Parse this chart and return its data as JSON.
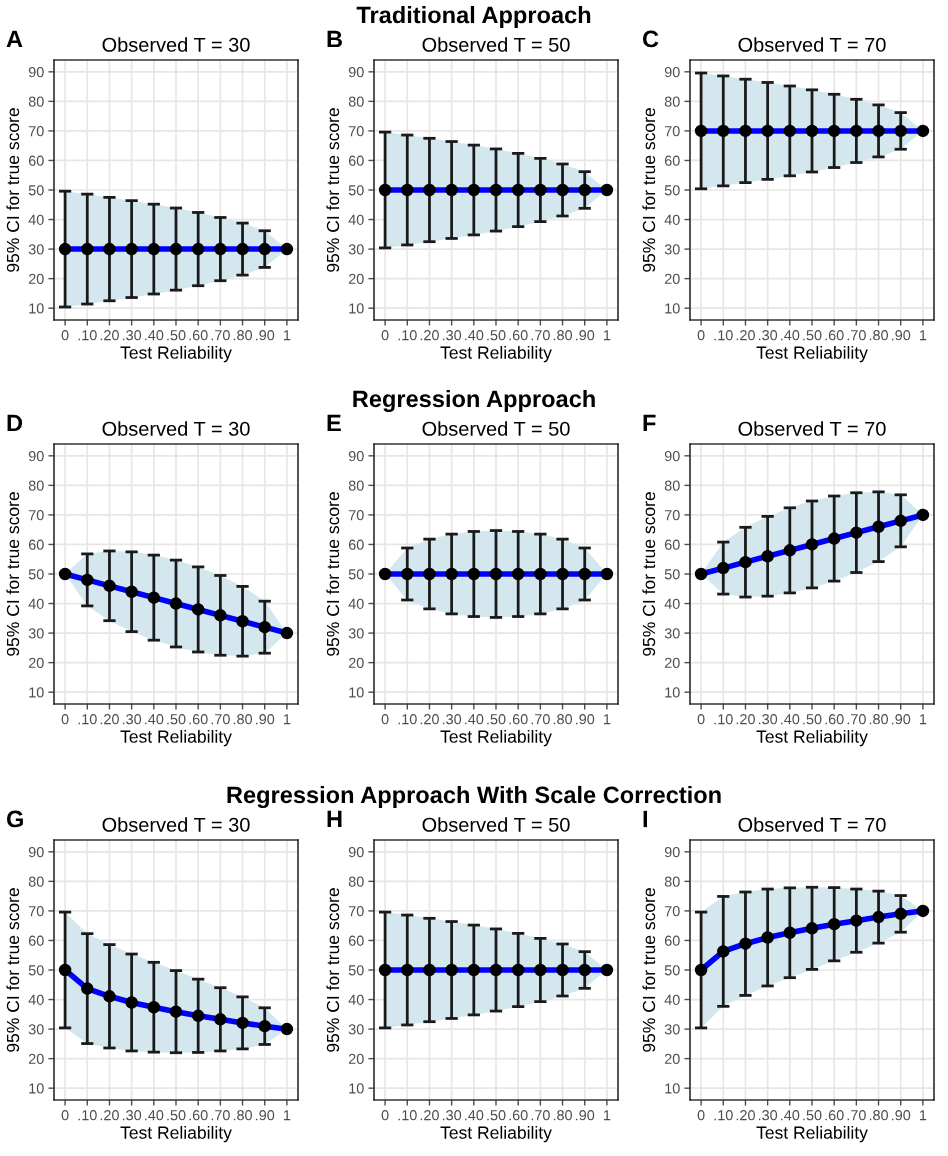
{
  "chart_data": [
    {
      "type": "line",
      "title": "Observed T = 30",
      "xlabel": "Test Reliability",
      "ylabel": "95% CI for true score",
      "annotations": [
        "A"
      ],
      "categories": [
        "0",
        ".10",
        ".20",
        ".30",
        ".40",
        ".50",
        ".60",
        ".70",
        ".80",
        ".90",
        "1"
      ],
      "ylim": [
        6,
        94
      ],
      "yticks": [
        10,
        20,
        30,
        40,
        50,
        60,
        70,
        80,
        90
      ],
      "grid": true,
      "marker": "circle",
      "series": [
        {
          "color": "#0000ff",
          "values": [
            30,
            30,
            30,
            30,
            30,
            30,
            30,
            30,
            30,
            30,
            30
          ],
          "errors": [
            19.6,
            18.6,
            17.5,
            16.4,
            15.2,
            13.9,
            12.4,
            10.7,
            8.8,
            6.2,
            0
          ],
          "lower": [
            10.4,
            11.4,
            12.5,
            13.6,
            14.8,
            16.1,
            17.6,
            19.3,
            21.2,
            23.8,
            30
          ],
          "upper": [
            49.6,
            48.6,
            47.5,
            46.4,
            45.2,
            43.9,
            42.4,
            40.7,
            38.8,
            36.2,
            30
          ]
        }
      ]
    },
    {
      "type": "line",
      "title": "Observed T = 50",
      "xlabel": "Test Reliability",
      "ylabel": "95% CI for true score",
      "annotations": [
        "B",
        "Traditional Approach"
      ],
      "categories": [
        "0",
        ".10",
        ".20",
        ".30",
        ".40",
        ".50",
        ".60",
        ".70",
        ".80",
        ".90",
        "1"
      ],
      "ylim": [
        6,
        94
      ],
      "yticks": [
        10,
        20,
        30,
        40,
        50,
        60,
        70,
        80,
        90
      ],
      "grid": true,
      "marker": "circle",
      "series": [
        {
          "color": "#0000ff",
          "values": [
            50,
            50,
            50,
            50,
            50,
            50,
            50,
            50,
            50,
            50,
            50
          ],
          "errors": [
            19.6,
            18.6,
            17.5,
            16.4,
            15.2,
            13.9,
            12.4,
            10.7,
            8.8,
            6.2,
            0
          ],
          "lower": [
            30.4,
            31.4,
            32.5,
            33.6,
            34.8,
            36.1,
            37.6,
            39.3,
            41.2,
            43.8,
            50
          ],
          "upper": [
            69.6,
            68.6,
            67.5,
            66.4,
            65.2,
            63.9,
            62.4,
            60.7,
            58.8,
            56.2,
            50
          ]
        }
      ]
    },
    {
      "type": "line",
      "title": "Observed T = 70",
      "xlabel": "Test Reliability",
      "ylabel": "95% CI for true score",
      "annotations": [
        "C"
      ],
      "categories": [
        "0",
        ".10",
        ".20",
        ".30",
        ".40",
        ".50",
        ".60",
        ".70",
        ".80",
        ".90",
        "1"
      ],
      "ylim": [
        6,
        94
      ],
      "yticks": [
        10,
        20,
        30,
        40,
        50,
        60,
        70,
        80,
        90
      ],
      "grid": true,
      "marker": "circle",
      "series": [
        {
          "color": "#0000ff",
          "values": [
            70,
            70,
            70,
            70,
            70,
            70,
            70,
            70,
            70,
            70,
            70
          ],
          "errors": [
            19.6,
            18.6,
            17.5,
            16.4,
            15.2,
            13.9,
            12.4,
            10.7,
            8.8,
            6.2,
            0
          ],
          "lower": [
            50.4,
            51.4,
            52.5,
            53.6,
            54.8,
            56.1,
            57.6,
            59.3,
            61.2,
            63.8,
            70
          ],
          "upper": [
            89.6,
            88.6,
            87.5,
            86.4,
            85.2,
            83.9,
            82.4,
            80.7,
            78.8,
            76.2,
            70
          ]
        }
      ]
    },
    {
      "type": "line",
      "title": "Observed T = 30",
      "xlabel": "Test Reliability",
      "ylabel": "95% CI for true score",
      "annotations": [
        "D"
      ],
      "categories": [
        "0",
        ".10",
        ".20",
        ".30",
        ".40",
        ".50",
        ".60",
        ".70",
        ".80",
        ".90",
        "1"
      ],
      "ylim": [
        6,
        94
      ],
      "yticks": [
        10,
        20,
        30,
        40,
        50,
        60,
        70,
        80,
        90
      ],
      "grid": true,
      "marker": "circle",
      "series": [
        {
          "color": "#0000ff",
          "values": [
            50,
            48,
            46,
            44,
            42,
            40,
            38,
            36,
            34,
            32,
            30
          ],
          "errors": [
            0,
            8.8,
            11.8,
            13.5,
            14.4,
            14.7,
            14.4,
            13.5,
            11.8,
            8.8,
            0
          ],
          "lower": [
            50,
            39.2,
            34.2,
            30.5,
            27.6,
            25.3,
            23.6,
            22.5,
            22.2,
            23.2,
            30
          ],
          "upper": [
            50,
            56.8,
            57.8,
            57.5,
            56.4,
            54.7,
            52.4,
            49.5,
            45.8,
            40.8,
            30
          ]
        }
      ]
    },
    {
      "type": "line",
      "title": "Observed T = 50",
      "xlabel": "Test Reliability",
      "ylabel": "95% CI for true score",
      "annotations": [
        "E",
        "Regression Approach"
      ],
      "categories": [
        "0",
        ".10",
        ".20",
        ".30",
        ".40",
        ".50",
        ".60",
        ".70",
        ".80",
        ".90",
        "1"
      ],
      "ylim": [
        6,
        94
      ],
      "yticks": [
        10,
        20,
        30,
        40,
        50,
        60,
        70,
        80,
        90
      ],
      "grid": true,
      "marker": "circle",
      "series": [
        {
          "color": "#0000ff",
          "values": [
            50,
            50,
            50,
            50,
            50,
            50,
            50,
            50,
            50,
            50,
            50
          ],
          "errors": [
            0,
            8.8,
            11.8,
            13.5,
            14.4,
            14.7,
            14.4,
            13.5,
            11.8,
            8.8,
            0
          ],
          "lower": [
            50,
            41.2,
            38.2,
            36.5,
            35.6,
            35.3,
            35.6,
            36.5,
            38.2,
            41.2,
            50
          ],
          "upper": [
            50,
            58.8,
            61.8,
            63.5,
            64.4,
            64.7,
            64.4,
            63.5,
            61.8,
            58.8,
            50
          ]
        }
      ]
    },
    {
      "type": "line",
      "title": "Observed T = 70",
      "xlabel": "Test Reliability",
      "ylabel": "95% CI for true score",
      "annotations": [
        "F"
      ],
      "categories": [
        "0",
        ".10",
        ".20",
        ".30",
        ".40",
        ".50",
        ".60",
        ".70",
        ".80",
        ".90",
        "1"
      ],
      "ylim": [
        6,
        94
      ],
      "yticks": [
        10,
        20,
        30,
        40,
        50,
        60,
        70,
        80,
        90
      ],
      "grid": true,
      "marker": "circle",
      "series": [
        {
          "color": "#0000ff",
          "values": [
            50,
            52,
            54,
            56,
            58,
            60,
            62,
            64,
            66,
            68,
            70
          ],
          "errors": [
            0,
            8.8,
            11.8,
            13.5,
            14.4,
            14.7,
            14.4,
            13.5,
            11.8,
            8.8,
            0
          ],
          "lower": [
            50,
            43.2,
            42.2,
            42.5,
            43.6,
            45.3,
            47.6,
            50.5,
            54.2,
            59.2,
            70
          ],
          "upper": [
            50,
            60.8,
            65.8,
            69.5,
            72.4,
            74.7,
            76.4,
            77.5,
            77.8,
            76.8,
            70
          ]
        }
      ]
    },
    {
      "type": "line",
      "title": "Observed T = 30",
      "xlabel": "Test Reliability",
      "ylabel": "95% CI for true score",
      "annotations": [
        "G"
      ],
      "categories": [
        "0",
        ".10",
        ".20",
        ".30",
        ".40",
        ".50",
        ".60",
        ".70",
        ".80",
        ".90",
        "1"
      ],
      "ylim": [
        6,
        94
      ],
      "yticks": [
        10,
        20,
        30,
        40,
        50,
        60,
        70,
        80,
        90
      ],
      "grid": true,
      "marker": "circle",
      "series": [
        {
          "color": "#0000ff",
          "values": [
            50,
            43.7,
            41.1,
            39.0,
            37.4,
            35.9,
            34.5,
            33.3,
            32.1,
            31.0,
            30
          ],
          "errors": [
            19.6,
            18.6,
            17.5,
            16.4,
            15.2,
            13.9,
            12.4,
            10.7,
            8.8,
            6.2,
            0
          ],
          "lower": [
            30.4,
            25.1,
            23.6,
            22.6,
            22.2,
            22.0,
            22.1,
            22.6,
            23.3,
            24.8,
            30
          ],
          "upper": [
            69.6,
            62.3,
            58.6,
            55.4,
            52.6,
            49.8,
            46.9,
            44.0,
            40.9,
            37.2,
            30
          ]
        }
      ]
    },
    {
      "type": "line",
      "title": "Observed T = 50",
      "xlabel": "Test Reliability",
      "ylabel": "95% CI for true score",
      "annotations": [
        "H",
        "Regression Approach With Scale Correction"
      ],
      "categories": [
        "0",
        ".10",
        ".20",
        ".30",
        ".40",
        ".50",
        ".60",
        ".70",
        ".80",
        ".90",
        "1"
      ],
      "ylim": [
        6,
        94
      ],
      "yticks": [
        10,
        20,
        30,
        40,
        50,
        60,
        70,
        80,
        90
      ],
      "grid": true,
      "marker": "circle",
      "series": [
        {
          "color": "#0000ff",
          "values": [
            50,
            50,
            50,
            50,
            50,
            50,
            50,
            50,
            50,
            50,
            50
          ],
          "errors": [
            19.6,
            18.6,
            17.5,
            16.4,
            15.2,
            13.9,
            12.4,
            10.7,
            8.8,
            6.2,
            0
          ],
          "lower": [
            30.4,
            31.4,
            32.5,
            33.6,
            34.8,
            36.1,
            37.6,
            39.3,
            41.2,
            43.8,
            50
          ],
          "upper": [
            69.6,
            68.6,
            67.5,
            66.4,
            65.2,
            63.9,
            62.4,
            60.7,
            58.8,
            56.2,
            50
          ]
        }
      ]
    },
    {
      "type": "line",
      "title": "Observed T = 70",
      "xlabel": "Test Reliability",
      "ylabel": "95% CI for true score",
      "annotations": [
        "I"
      ],
      "categories": [
        "0",
        ".10",
        ".20",
        ".30",
        ".40",
        ".50",
        ".60",
        ".70",
        ".80",
        ".90",
        "1"
      ],
      "ylim": [
        6,
        94
      ],
      "yticks": [
        10,
        20,
        30,
        40,
        50,
        60,
        70,
        80,
        90
      ],
      "grid": true,
      "marker": "circle",
      "series": [
        {
          "color": "#0000ff",
          "values": [
            50,
            56.3,
            58.9,
            61.0,
            62.6,
            64.1,
            65.5,
            66.7,
            67.9,
            69.0,
            70
          ],
          "errors": [
            19.6,
            18.6,
            17.5,
            16.4,
            15.2,
            13.9,
            12.4,
            10.7,
            8.8,
            6.2,
            0
          ],
          "lower": [
            30.4,
            37.7,
            41.4,
            44.6,
            47.4,
            50.2,
            53.1,
            56.0,
            59.1,
            62.8,
            70
          ],
          "upper": [
            69.6,
            74.9,
            76.4,
            77.4,
            77.8,
            78.0,
            77.9,
            77.4,
            76.7,
            75.2,
            70
          ]
        }
      ]
    }
  ]
}
